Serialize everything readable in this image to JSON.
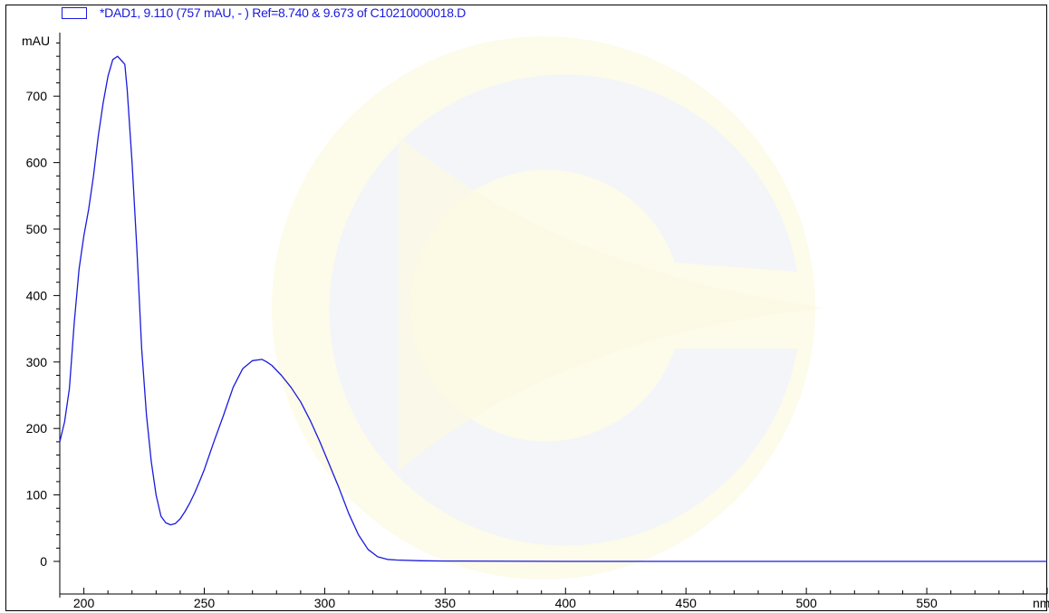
{
  "chart_data": {
    "type": "line",
    "legend": "*DAD1, 9.110 (757 mAU, - ) Ref=8.740 & 9.673 of C10210000018.D",
    "ylabel": "mAU",
    "xlabel": "nm",
    "xlim": [
      190,
      600
    ],
    "ylim": [
      -30,
      800
    ],
    "x_ticks": [
      200,
      250,
      300,
      350,
      400,
      450,
      500,
      550
    ],
    "y_ticks": [
      0,
      100,
      200,
      300,
      400,
      500,
      600,
      700
    ],
    "series_color": "#1a1adc",
    "series": [
      {
        "x": [
          190,
          192,
          194,
          196,
          198,
          200,
          202,
          204,
          206,
          208,
          210,
          212,
          214,
          216,
          217,
          218,
          220,
          222,
          224,
          226,
          228,
          230,
          232,
          234,
          236,
          238,
          240,
          242,
          244,
          246,
          248,
          250,
          254,
          258,
          262,
          266,
          270,
          274,
          276,
          278,
          282,
          286,
          290,
          294,
          298,
          302,
          306,
          310,
          314,
          318,
          322,
          326,
          330,
          340,
          350,
          400,
          450,
          500,
          550,
          600
        ],
        "y": [
          180,
          210,
          260,
          360,
          440,
          490,
          530,
          580,
          640,
          690,
          730,
          755,
          760,
          752,
          748,
          710,
          600,
          470,
          320,
          220,
          150,
          100,
          68,
          58,
          55,
          57,
          64,
          75,
          88,
          103,
          120,
          138,
          180,
          220,
          262,
          290,
          302,
          304,
          300,
          295,
          280,
          262,
          240,
          212,
          180,
          145,
          110,
          72,
          40,
          18,
          7,
          3,
          2,
          1,
          0.5,
          0,
          0,
          0,
          0,
          0
        ]
      }
    ]
  }
}
